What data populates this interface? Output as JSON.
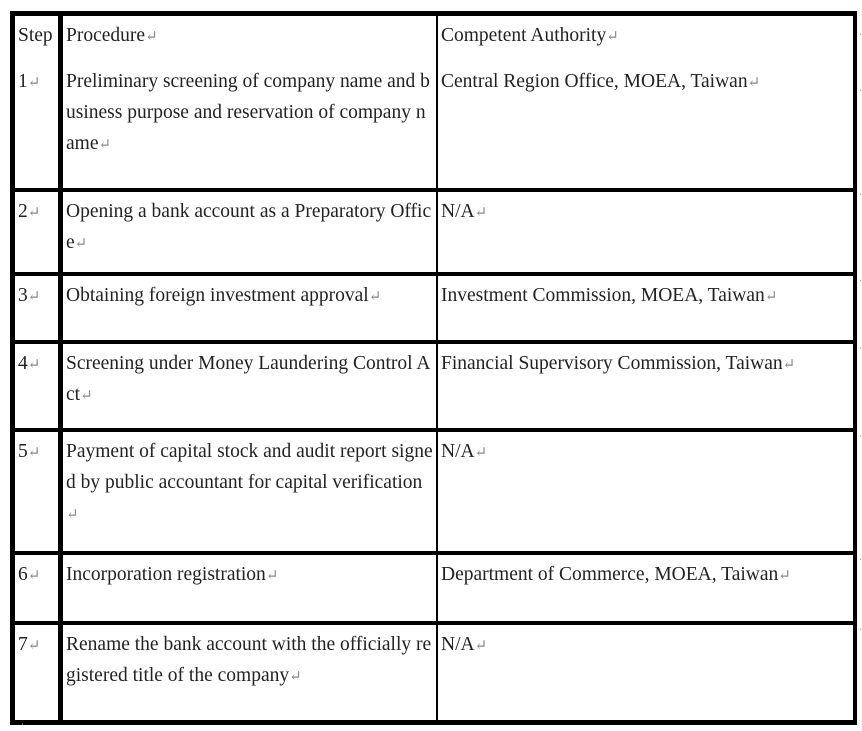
{
  "paragraph_mark": "↵",
  "end_of_row_mark": "·",
  "header": {
    "step": "Step",
    "procedure": "Procedure",
    "authority": "Competent Authority"
  },
  "rows": [
    {
      "step": "1",
      "procedure": "Preliminary screening of company name and business purpose and reservation of company name",
      "authority": "Central Region Office, MOEA, Taiwan"
    },
    {
      "step": "2",
      "procedure": "Opening a bank account as a Preparatory Office",
      "authority": "N/A"
    },
    {
      "step": "3",
      "procedure": "Obtaining foreign investment approval",
      "authority": "Investment Commission, MOEA, Taiwan"
    },
    {
      "step": "4",
      "procedure": "Screening under Money Laundering Control Act",
      "authority": "Financial Supervisory Commission, Taiwan"
    },
    {
      "step": "5",
      "procedure": "Payment of capital stock and audit report signed by public accountant for capital verification",
      "authority": "N/A"
    },
    {
      "step": "6",
      "procedure": "Incorporation registration",
      "authority": "Department of Commerce, MOEA, Taiwan"
    },
    {
      "step": "7",
      "procedure": "Rename the bank account with the officially registered title of the company",
      "authority": "N/A"
    }
  ]
}
